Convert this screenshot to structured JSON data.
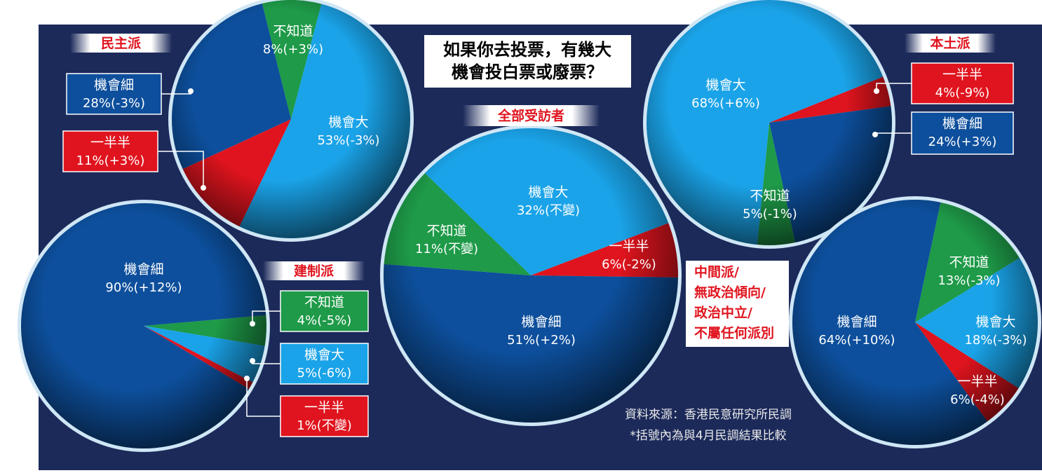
{
  "header": {
    "title_lines": [
      "如果你去投票，有幾大",
      "機會投白票或廢票？"
    ]
  },
  "source": "資料來源：香港民意研究所民調",
  "note": "*括號內為與4月民調結果比較",
  "chart_data": [
    {
      "type": "pie",
      "title": "民主派",
      "categories": [
        "不知道",
        "機會大",
        "一半半",
        "機會細"
      ],
      "values": [
        8,
        53,
        11,
        28
      ],
      "value_labels": [
        "8%",
        "53%",
        "11%",
        "28%"
      ],
      "change_labels": [
        "(+3%)",
        "(-3%)",
        "(+3%)",
        "(-3%)"
      ],
      "colors": [
        "#1e9a48",
        "#1aa3e8",
        "#e0141e",
        "#0d4f9c"
      ]
    },
    {
      "type": "pie",
      "title": "建制派",
      "categories": [
        "不知道",
        "機會大",
        "一半半",
        "機會細"
      ],
      "values": [
        4,
        5,
        1,
        90
      ],
      "value_labels": [
        "4%",
        "5%",
        "1%",
        "90%"
      ],
      "change_labels": [
        "(-5%)",
        "(-6%)",
        "(不變)",
        "(+12%)"
      ],
      "colors": [
        "#1e9a48",
        "#1aa3e8",
        "#e0141e",
        "#0d4f9c"
      ]
    },
    {
      "type": "pie",
      "title": "全部受訪者",
      "categories": [
        "機會大",
        "一半半",
        "機會細",
        "不知道"
      ],
      "values": [
        32,
        6,
        51,
        11
      ],
      "value_labels": [
        "32%",
        "6%",
        "51%",
        "11%"
      ],
      "change_labels": [
        "(不變)",
        "(-2%)",
        "(+2%)",
        "(不變)"
      ],
      "colors": [
        "#1aa3e8",
        "#e0141e",
        "#0d4f9c",
        "#1e9a48"
      ]
    },
    {
      "type": "pie",
      "title": "本土派",
      "categories": [
        "一半半",
        "機會細",
        "不知道",
        "機會大"
      ],
      "values": [
        4,
        24,
        5,
        68
      ],
      "value_labels": [
        "4%",
        "24%",
        "5%",
        "68%"
      ],
      "change_labels": [
        "(-9%)",
        "(+3%)",
        "(-1%)",
        "(+6%)"
      ],
      "colors": [
        "#e0141e",
        "#0d4f9c",
        "#1e9a48",
        "#1aa3e8"
      ]
    },
    {
      "type": "pie",
      "title": [
        "中間派/",
        "無政治傾向/",
        "政治中立/",
        "不屬任何派別"
      ],
      "categories": [
        "不知道",
        "機會大",
        "一半半",
        "機會細"
      ],
      "values": [
        13,
        18,
        6,
        64
      ],
      "value_labels": [
        "13%",
        "18%",
        "6%",
        "64%"
      ],
      "change_labels": [
        "(-3%)",
        "(-3%)",
        "(-4%)",
        "(+10%)"
      ],
      "colors": [
        "#1e9a48",
        "#1aa3e8",
        "#e0141e",
        "#0d4f9c"
      ]
    }
  ]
}
